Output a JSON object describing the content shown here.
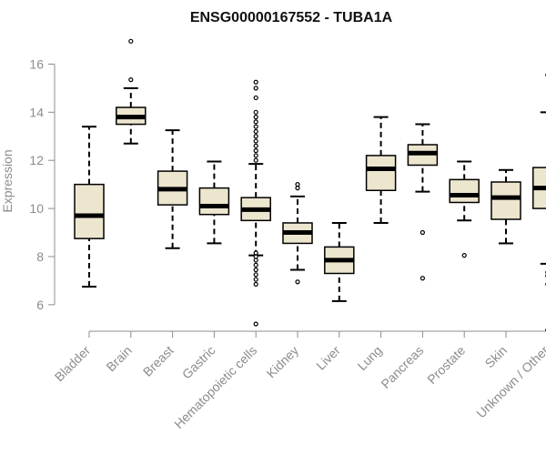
{
  "chart_data": {
    "type": "boxplot",
    "title": "ENSG00000167552 - TUBA1A",
    "xlabel": "",
    "ylabel": "Expression",
    "ylim": [
      5.2,
      17.0
    ],
    "yticks": [
      6,
      8,
      10,
      12,
      14,
      16
    ],
    "grid": false,
    "colors": {
      "box_fill": "#ede6cf",
      "box_stroke": "#000000",
      "median": "#000000",
      "axis": "#8c8c8c",
      "text": "#8c8c8c",
      "title": "#111111"
    },
    "categories": [
      "Bladder",
      "Brain",
      "Breast",
      "Gastric",
      "Hematopoietic cells",
      "Kidney",
      "Liver",
      "Lung",
      "Pancreas",
      "Prostate",
      "Skin",
      "Unknown / Other"
    ],
    "boxes": [
      {
        "name": "Bladder",
        "whisker_low": 6.75,
        "q1": 8.75,
        "median": 9.7,
        "q3": 11.0,
        "whisker_high": 13.4,
        "outliers": []
      },
      {
        "name": "Brain",
        "whisker_low": 12.7,
        "q1": 13.5,
        "median": 13.8,
        "q3": 14.2,
        "whisker_high": 15.0,
        "outliers": [
          15.35,
          16.95
        ]
      },
      {
        "name": "Breast",
        "whisker_low": 8.35,
        "q1": 10.15,
        "median": 10.8,
        "q3": 11.55,
        "whisker_high": 13.25,
        "outliers": []
      },
      {
        "name": "Gastric",
        "whisker_low": 8.55,
        "q1": 9.75,
        "median": 10.1,
        "q3": 10.85,
        "whisker_high": 11.95,
        "outliers": []
      },
      {
        "name": "Hematopoietic cells",
        "whisker_low": 8.05,
        "q1": 9.5,
        "median": 9.95,
        "q3": 10.45,
        "whisker_high": 11.85,
        "outliers": [
          5.2,
          6.85,
          7.05,
          7.25,
          7.45,
          7.65,
          7.85,
          8.0,
          8.15,
          12.0,
          12.2,
          12.4,
          12.6,
          12.8,
          13.0,
          13.2,
          13.4,
          13.6,
          13.8,
          14.0,
          14.6,
          15.0,
          15.25
        ]
      },
      {
        "name": "Kidney",
        "whisker_low": 7.45,
        "q1": 8.55,
        "median": 9.0,
        "q3": 9.4,
        "whisker_high": 10.5,
        "outliers": [
          6.95,
          10.85,
          11.0
        ]
      },
      {
        "name": "Liver",
        "whisker_low": 6.15,
        "q1": 7.3,
        "median": 7.85,
        "q3": 8.4,
        "whisker_high": 9.4,
        "outliers": []
      },
      {
        "name": "Lung",
        "whisker_low": 9.4,
        "q1": 10.75,
        "median": 11.65,
        "q3": 12.2,
        "whisker_high": 13.8,
        "outliers": []
      },
      {
        "name": "Pancreas",
        "whisker_low": 10.7,
        "q1": 11.8,
        "median": 12.3,
        "q3": 12.65,
        "whisker_high": 13.5,
        "outliers": [
          7.1,
          9.0
        ]
      },
      {
        "name": "Prostate",
        "whisker_low": 9.5,
        "q1": 10.25,
        "median": 10.55,
        "q3": 11.2,
        "whisker_high": 11.95,
        "outliers": [
          8.05
        ]
      },
      {
        "name": "Skin",
        "whisker_low": 8.55,
        "q1": 9.55,
        "median": 10.45,
        "q3": 11.1,
        "whisker_high": 11.6,
        "outliers": []
      },
      {
        "name": "Unknown / Other",
        "whisker_low": 7.7,
        "q1": 10.0,
        "median": 10.85,
        "q3": 11.7,
        "whisker_high": 14.0,
        "outliers": [
          4.95,
          6.85,
          7.2,
          7.35,
          15.55
        ]
      }
    ]
  }
}
